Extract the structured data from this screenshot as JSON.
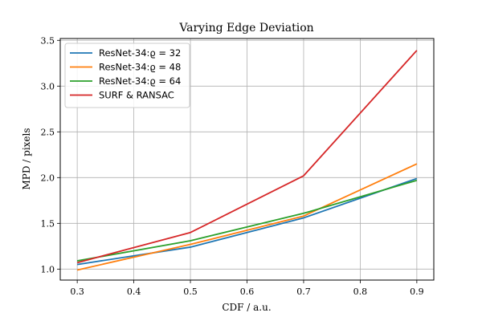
{
  "chart_data": {
    "type": "line",
    "title": "Varying Edge Deviation",
    "xlabel": "CDF / a.u.",
    "ylabel": "MPD / pixels",
    "x": [
      0.3,
      0.5,
      0.7,
      0.9
    ],
    "xlim": [
      0.27,
      0.93
    ],
    "ylim": [
      0.88,
      3.52
    ],
    "xticks": [
      0.3,
      0.4,
      0.5,
      0.6,
      0.7,
      0.8,
      0.9
    ],
    "xtick_labels": [
      "0.3",
      "0.4",
      "0.5",
      "0.6",
      "0.7",
      "0.8",
      "0.9"
    ],
    "yticks": [
      1.0,
      1.5,
      2.0,
      2.5,
      3.0,
      3.5
    ],
    "ytick_labels": [
      "1.0",
      "1.5",
      "2.0",
      "2.5",
      "3.0",
      "3.5"
    ],
    "grid": true,
    "legend_position": "top-left",
    "series": [
      {
        "name": "ResNet-34:ϱ = 32",
        "color": "#1f77b4",
        "values": [
          1.05,
          1.24,
          1.56,
          1.99
        ]
      },
      {
        "name": "ResNet-34:ϱ = 48",
        "color": "#ff7f0e",
        "values": [
          0.99,
          1.27,
          1.58,
          2.15
        ]
      },
      {
        "name": "ResNet-34:ϱ = 64",
        "color": "#2ca02c",
        "values": [
          1.09,
          1.31,
          1.61,
          1.97
        ]
      },
      {
        "name": "SURF & RANSAC",
        "color": "#d62728",
        "values": [
          1.07,
          1.4,
          2.02,
          3.39
        ]
      }
    ]
  }
}
